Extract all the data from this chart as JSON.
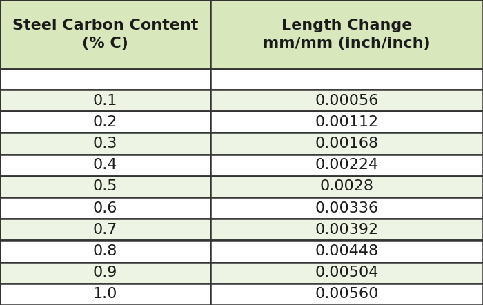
{
  "col1_header": "Steel Carbon Content\n(% C)",
  "col2_header": "Length Change\nmm/mm (inch/inch)",
  "rows": [
    [
      "0.1",
      "0.00056"
    ],
    [
      "0.2",
      "0.00112"
    ],
    [
      "0.3",
      "0.00168"
    ],
    [
      "0.4",
      "0.00224"
    ],
    [
      "0.5",
      "0.0028"
    ],
    [
      "0.6",
      "0.00336"
    ],
    [
      "0.7",
      "0.00392"
    ],
    [
      "0.8",
      "0.00448"
    ],
    [
      "0.9",
      "0.00504"
    ],
    [
      "1.0",
      "0.00560"
    ]
  ],
  "header_bg": "#d9e8bc",
  "row_bg_odd": "#eef4e3",
  "row_bg_even": "#ffffff",
  "empty_row_bg": "#ffffff",
  "border_color": "#333333",
  "text_color": "#1a1a1a",
  "header_fontsize": 16,
  "cell_fontsize": 16,
  "col_split": 0.435,
  "fig_width": 7.0,
  "fig_height": 4.42,
  "dpi": 100
}
